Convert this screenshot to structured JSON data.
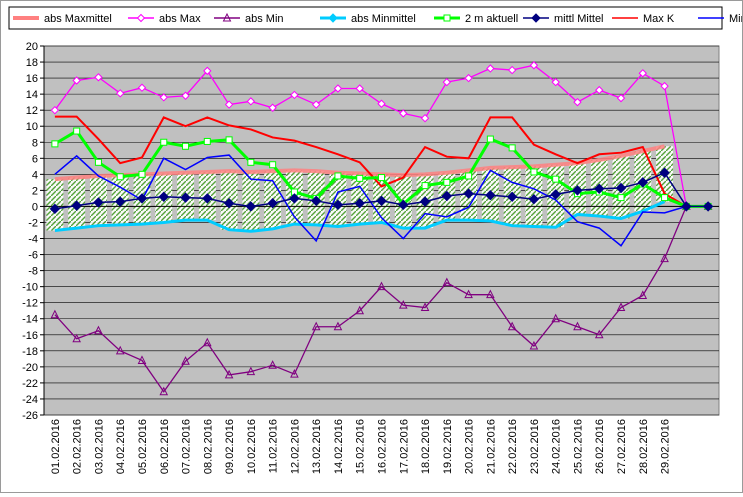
{
  "chart_data": {
    "type": "line",
    "title": "",
    "xlabel": "",
    "ylabel": "",
    "ylim": [
      -26,
      20
    ],
    "ytick_step": 2,
    "grid": "horizontal",
    "legend_position": "top",
    "plot_background": "#c0c0c0",
    "categories": [
      "01.02.2016",
      "02.02.2016",
      "03.02.2016",
      "04.02.2016",
      "05.02.2016",
      "06.02.2016",
      "07.02.2016",
      "08.02.2016",
      "09.02.2016",
      "10.02.2016",
      "11.02.2016",
      "12.02.2016",
      "13.02.2016",
      "14.02.2016",
      "15.02.2016",
      "16.02.2016",
      "17.02.2016",
      "18.02.2016",
      "19.02.2016",
      "20.02.2016",
      "21.02.2016",
      "22.02.2016",
      "23.02.2016",
      "24.02.2016",
      "25.02.2016",
      "26.02.2016",
      "27.02.2016",
      "28.02.2016",
      "29.02.2016",
      "",
      ""
    ],
    "series": [
      {
        "name": "abs Maxmittel",
        "kind": "band_top",
        "color": "#ff8080",
        "values": [
          3.4,
          3.6,
          3.8,
          3.9,
          4.0,
          4.1,
          4.2,
          4.3,
          4.4,
          4.3,
          4.4,
          4.5,
          4.4,
          4.2,
          4.1,
          4.0,
          3.9,
          4.0,
          4.2,
          4.5,
          4.8,
          4.9,
          5.0,
          5.2,
          5.4,
          5.8,
          6.3,
          6.9,
          7.5,
          null,
          null
        ]
      },
      {
        "name": "abs Max",
        "kind": "line",
        "color": "#ff00ff",
        "marker": "diamond-open",
        "values": [
          12.0,
          15.7,
          16.1,
          14.1,
          14.8,
          13.6,
          13.8,
          16.9,
          12.7,
          13.1,
          12.3,
          13.9,
          12.7,
          14.7,
          14.7,
          12.8,
          11.6,
          11.0,
          15.5,
          16.0,
          17.2,
          17.0,
          17.6,
          15.5,
          13.0,
          14.5,
          13.5,
          16.6,
          15.0,
          0.0,
          0.0
        ]
      },
      {
        "name": "abs Min",
        "kind": "line",
        "color": "#800080",
        "marker": "triangle-open",
        "values": [
          -13.5,
          -16.5,
          -15.5,
          -18.0,
          -19.2,
          -23.1,
          -19.3,
          -17.0,
          -21.0,
          -20.6,
          -19.8,
          -20.9,
          -15.0,
          -15.0,
          -13.0,
          -10.0,
          -12.3,
          -12.6,
          -9.5,
          -11.0,
          -11.0,
          -15.0,
          -17.4,
          -14.0,
          -15.0,
          -16.0,
          -12.6,
          -11.1,
          -6.5,
          0.0,
          0.0
        ]
      },
      {
        "name": "abs Minmittel",
        "kind": "band_bottom",
        "color": "#00ccff",
        "marker": "diamond",
        "values": [
          -3.0,
          -2.7,
          -2.4,
          -2.3,
          -2.2,
          -2.0,
          -1.7,
          -1.7,
          -2.9,
          -3.1,
          -2.8,
          -2.2,
          -2.3,
          -2.5,
          -2.2,
          -2.0,
          -2.7,
          -2.7,
          -1.7,
          -1.7,
          -1.8,
          -2.4,
          -2.5,
          -2.6,
          -1.0,
          -1.2,
          -1.5,
          -0.6,
          0.6,
          null,
          null
        ]
      },
      {
        "name": "2 m aktuell",
        "kind": "line",
        "color": "#00ff00",
        "marker": "square-open",
        "values": [
          7.8,
          9.4,
          5.5,
          3.7,
          4.0,
          8.0,
          7.5,
          8.1,
          8.3,
          5.5,
          5.2,
          1.8,
          1.0,
          3.8,
          3.5,
          3.6,
          0.3,
          2.6,
          3.0,
          3.8,
          8.4,
          7.3,
          4.3,
          3.4,
          1.6,
          1.8,
          1.1,
          2.8,
          1.1,
          0.0,
          0.0
        ]
      },
      {
        "name": "mittl Mittel",
        "kind": "line",
        "color": "#000080",
        "marker": "diamond",
        "values": [
          -0.3,
          0.1,
          0.5,
          0.6,
          1.0,
          1.2,
          1.1,
          1.0,
          0.4,
          0.0,
          0.4,
          1.0,
          0.7,
          0.2,
          0.4,
          0.7,
          0.2,
          0.6,
          1.3,
          1.6,
          1.4,
          1.2,
          0.9,
          1.5,
          2.0,
          2.2,
          2.3,
          3.0,
          4.2,
          0.0,
          0.0
        ]
      },
      {
        "name": "Max K",
        "kind": "line",
        "color": "#ff0000",
        "marker": "none",
        "values": [
          11.2,
          11.2,
          8.4,
          5.4,
          6.1,
          11.1,
          10.0,
          11.1,
          10.1,
          9.6,
          8.6,
          8.2,
          7.4,
          6.5,
          5.5,
          2.5,
          3.6,
          7.4,
          6.2,
          6.0,
          11.1,
          11.1,
          7.7,
          6.5,
          5.4,
          6.5,
          6.7,
          7.4,
          1.6,
          0.0,
          0.0
        ]
      },
      {
        "name": "Min K",
        "kind": "line",
        "color": "#0000ff",
        "marker": "none",
        "values": [
          4.0,
          6.3,
          3.8,
          2.4,
          0.8,
          6.0,
          4.6,
          6.1,
          6.4,
          3.4,
          3.2,
          -1.3,
          -4.3,
          1.8,
          2.5,
          -1.4,
          -4.0,
          -0.9,
          -1.3,
          -0.1,
          4.5,
          3.0,
          2.2,
          0.8,
          -1.9,
          -2.7,
          -4.9,
          -0.7,
          -0.8,
          0.0,
          0.0
        ]
      }
    ]
  }
}
